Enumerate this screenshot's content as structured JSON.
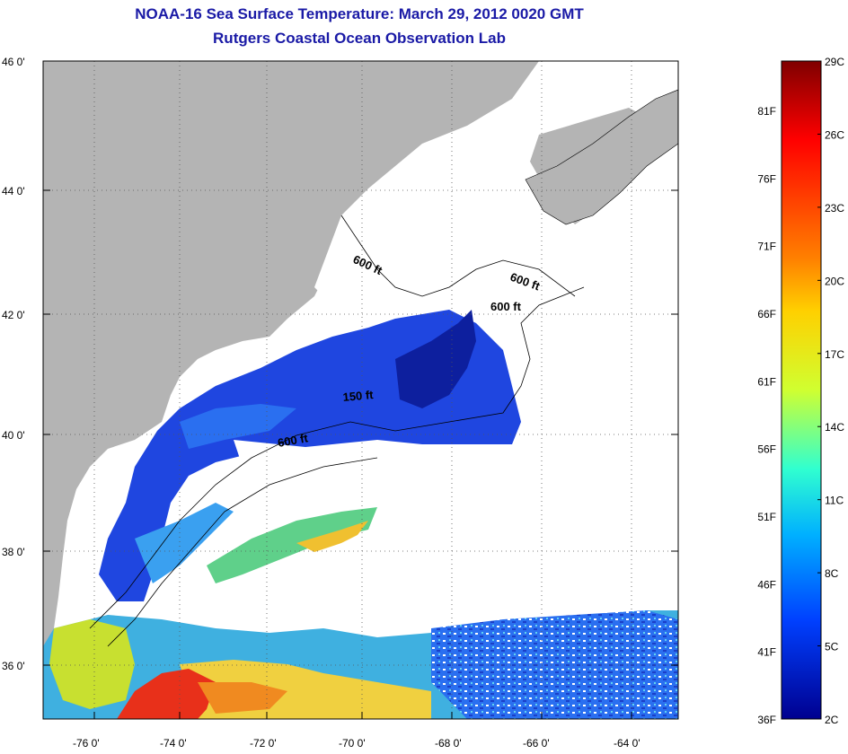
{
  "title": {
    "line1": "NOAA-16 Sea Surface Temperature:  March 29, 2012 0020 GMT",
    "line2": "Rutgers Coastal Ocean Observation Lab"
  },
  "map": {
    "lat_ticks": [
      "46 0'",
      "44 0'",
      "42 0'",
      "40 0'",
      "38 0'",
      "36 0'"
    ],
    "lon_ticks": [
      "-76 0'",
      "-74 0'",
      "-72 0'",
      "-70 0'",
      "-68 0'",
      "-66 0'",
      "-64 0'"
    ],
    "contour_labels": [
      "600 ft",
      "600 ft",
      "600 ft",
      "150 ft",
      "600 ft"
    ],
    "colors": {
      "land": "#b4b4b4",
      "cloud": "#ffffff",
      "cold": "#1f3fd6",
      "coldest": "#0a1a8c",
      "warm": "#e83a12",
      "mid": "#3fb0e0"
    }
  },
  "colorbar": {
    "celsius_labels": [
      "29C",
      "26C",
      "23C",
      "20C",
      "17C",
      "14C",
      "11C",
      "8C",
      "5C",
      "2C"
    ],
    "fahrenheit_labels": [
      "81F",
      "76F",
      "71F",
      "66F",
      "61F",
      "56F",
      "51F",
      "46F",
      "41F",
      "36F"
    ],
    "range_celsius": [
      2,
      29
    ]
  }
}
